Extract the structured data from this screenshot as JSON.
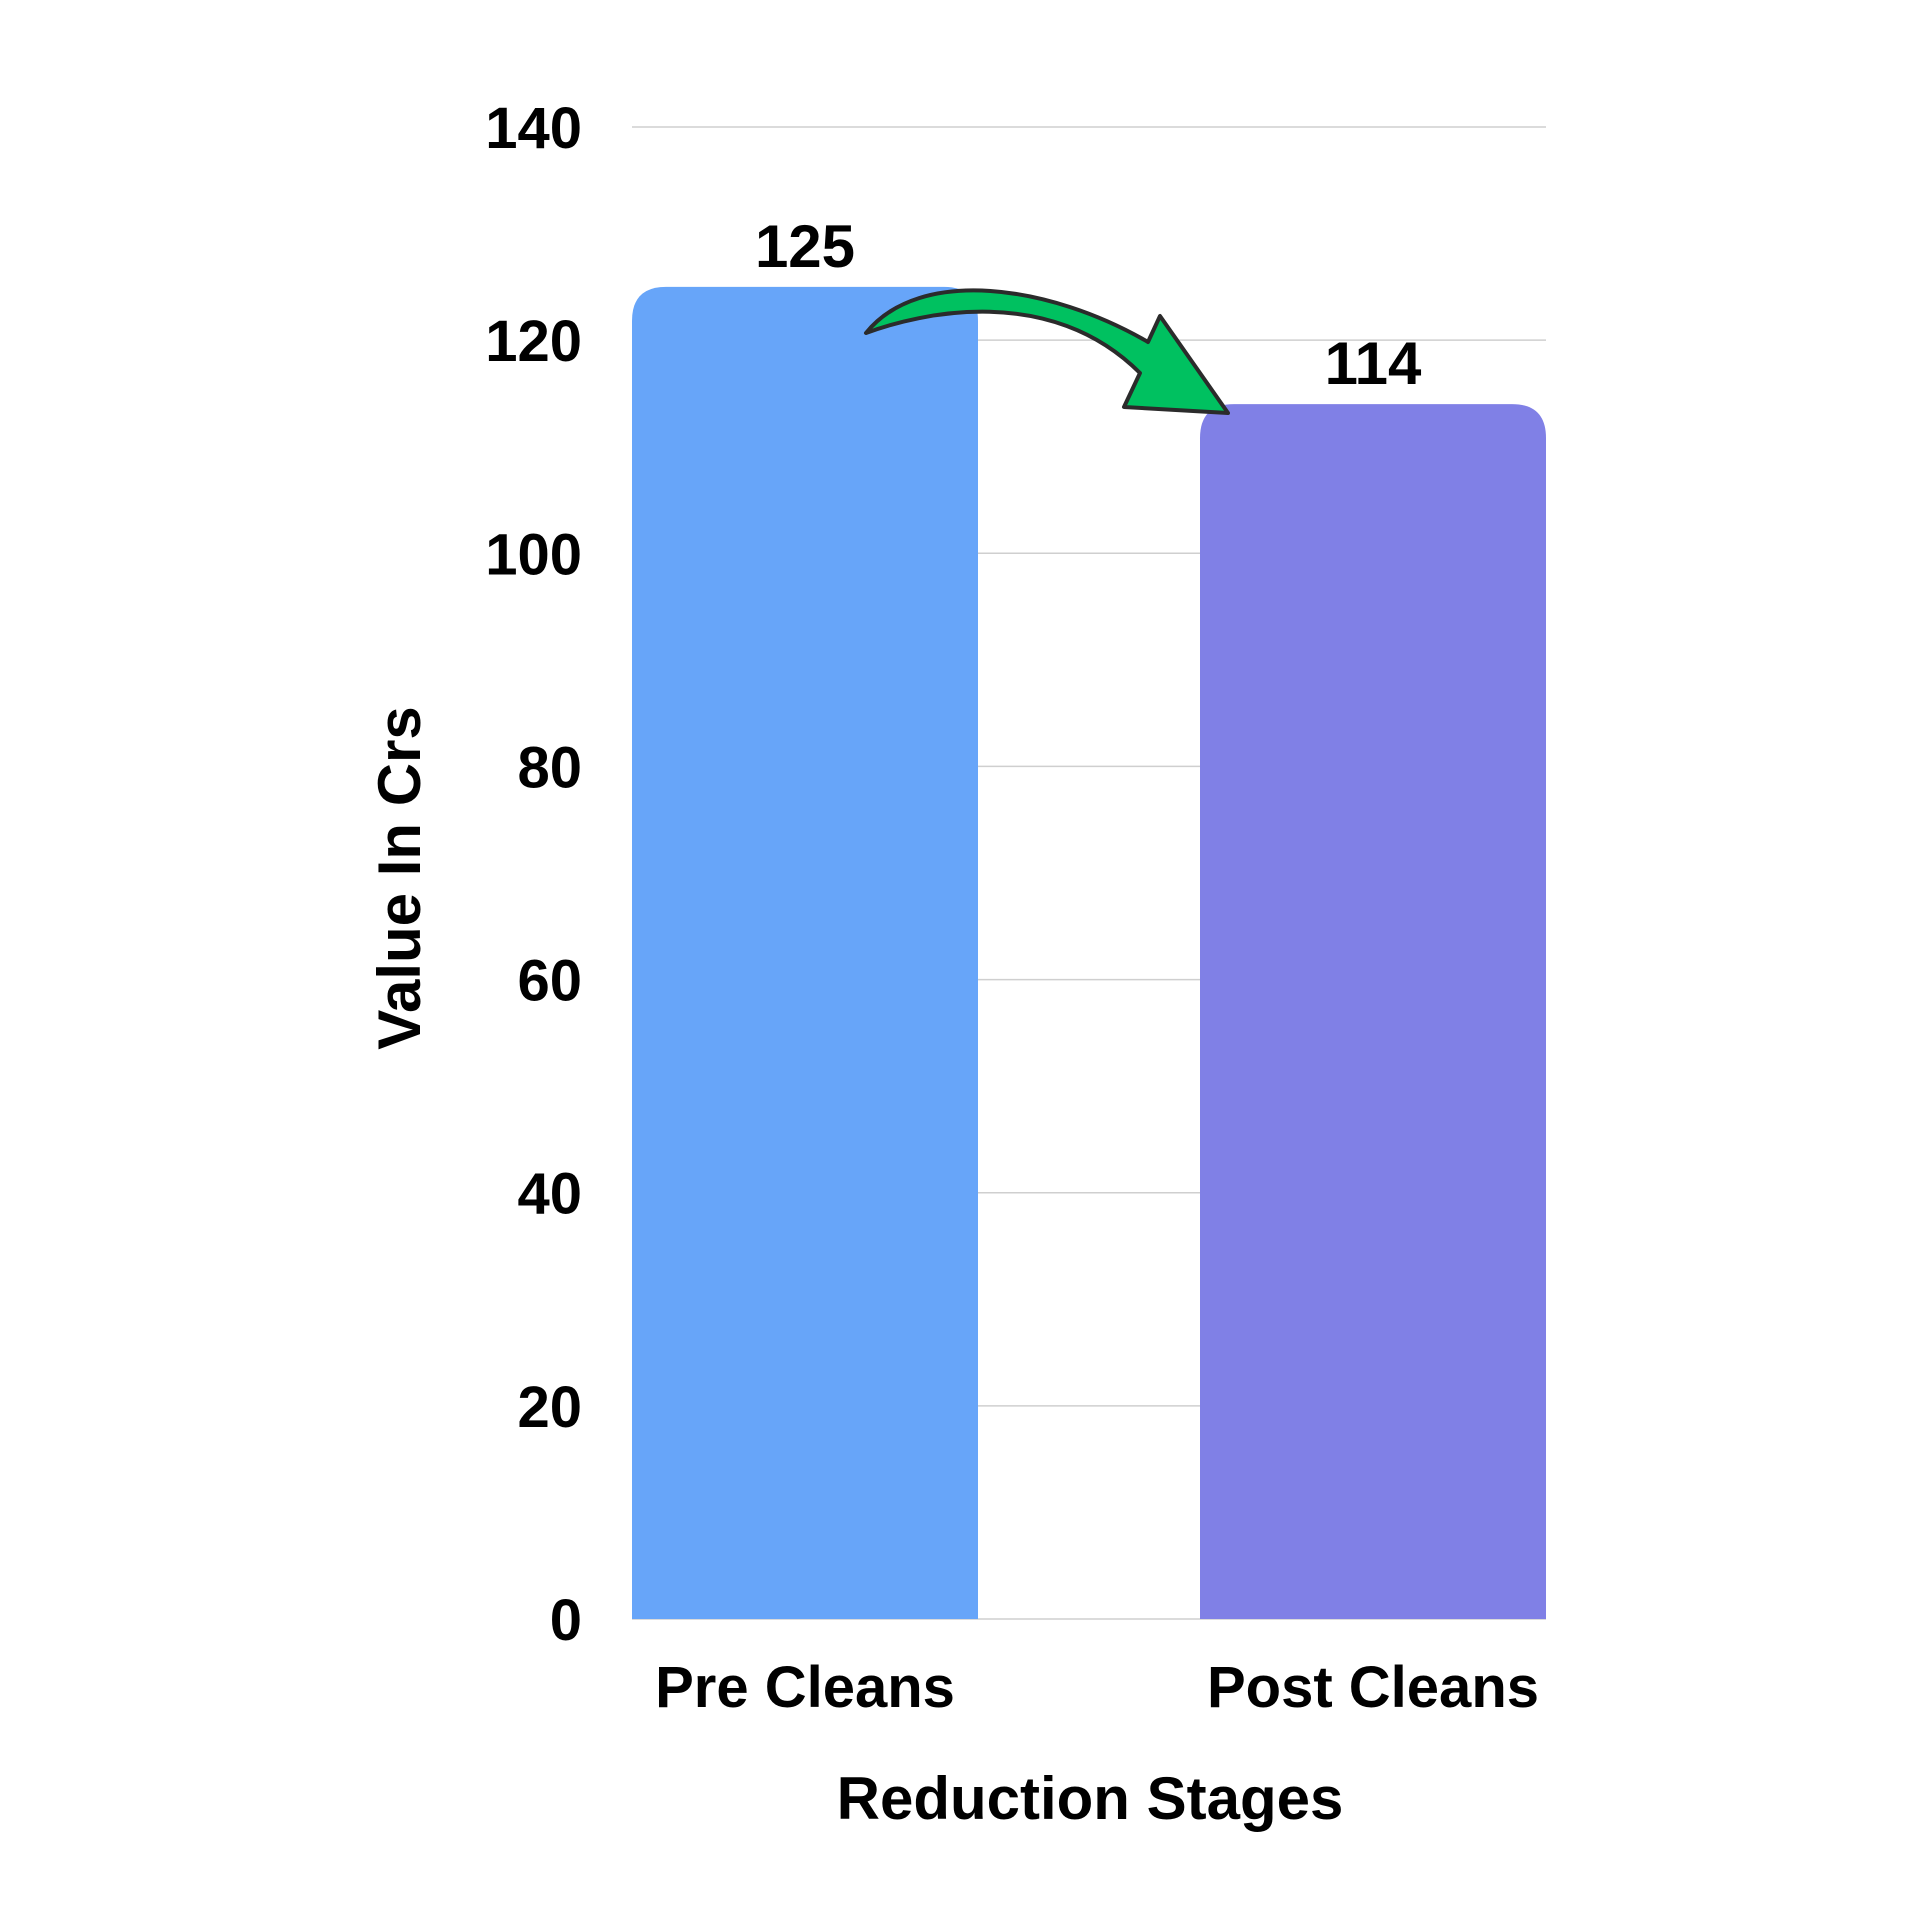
{
  "chart_data": {
    "type": "bar",
    "categories": [
      "Pre Cleans",
      "Post Cleans"
    ],
    "values": [
      125,
      114
    ],
    "data_labels": [
      "125",
      "114"
    ],
    "xlabel": "Reduction Stages",
    "ylabel": "Value In Crs",
    "ylim": [
      0,
      140
    ],
    "yticks": [
      "0",
      "20",
      "40",
      "60",
      "80",
      "100",
      "120",
      "140"
    ],
    "grid": true,
    "legend": "none",
    "bar_colors": [
      "#67a5f9",
      "#8080e6"
    ],
    "annotation": {
      "type": "curved-arrow",
      "direction": "from Pre Cleans to Post Cleans",
      "color": "#00c160"
    }
  }
}
